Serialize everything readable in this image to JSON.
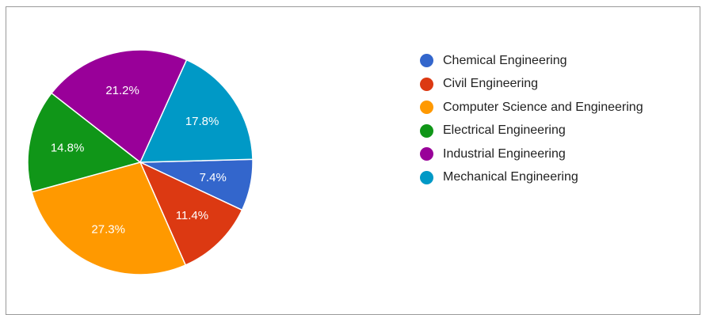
{
  "chart_data": {
    "type": "pie",
    "title": "",
    "legend_position": "right",
    "slices": [
      {
        "name": "Chemical Engineering",
        "value": 7.4,
        "label": "7.4%",
        "color": "#3366cc"
      },
      {
        "name": "Civil Engineering",
        "value": 11.4,
        "label": "11.4%",
        "color": "#dc3912"
      },
      {
        "name": "Computer Science and Engineering",
        "value": 27.3,
        "label": "27.3%",
        "color": "#ff9900"
      },
      {
        "name": "Electrical Engineering",
        "value": 14.8,
        "label": "14.8%",
        "color": "#109618"
      },
      {
        "name": "Industrial Engineering",
        "value": 21.2,
        "label": "21.2%",
        "color": "#990099"
      },
      {
        "name": "Mechanical Engineering",
        "value": 17.8,
        "label": "17.8%",
        "color": "#0099c6"
      }
    ]
  }
}
